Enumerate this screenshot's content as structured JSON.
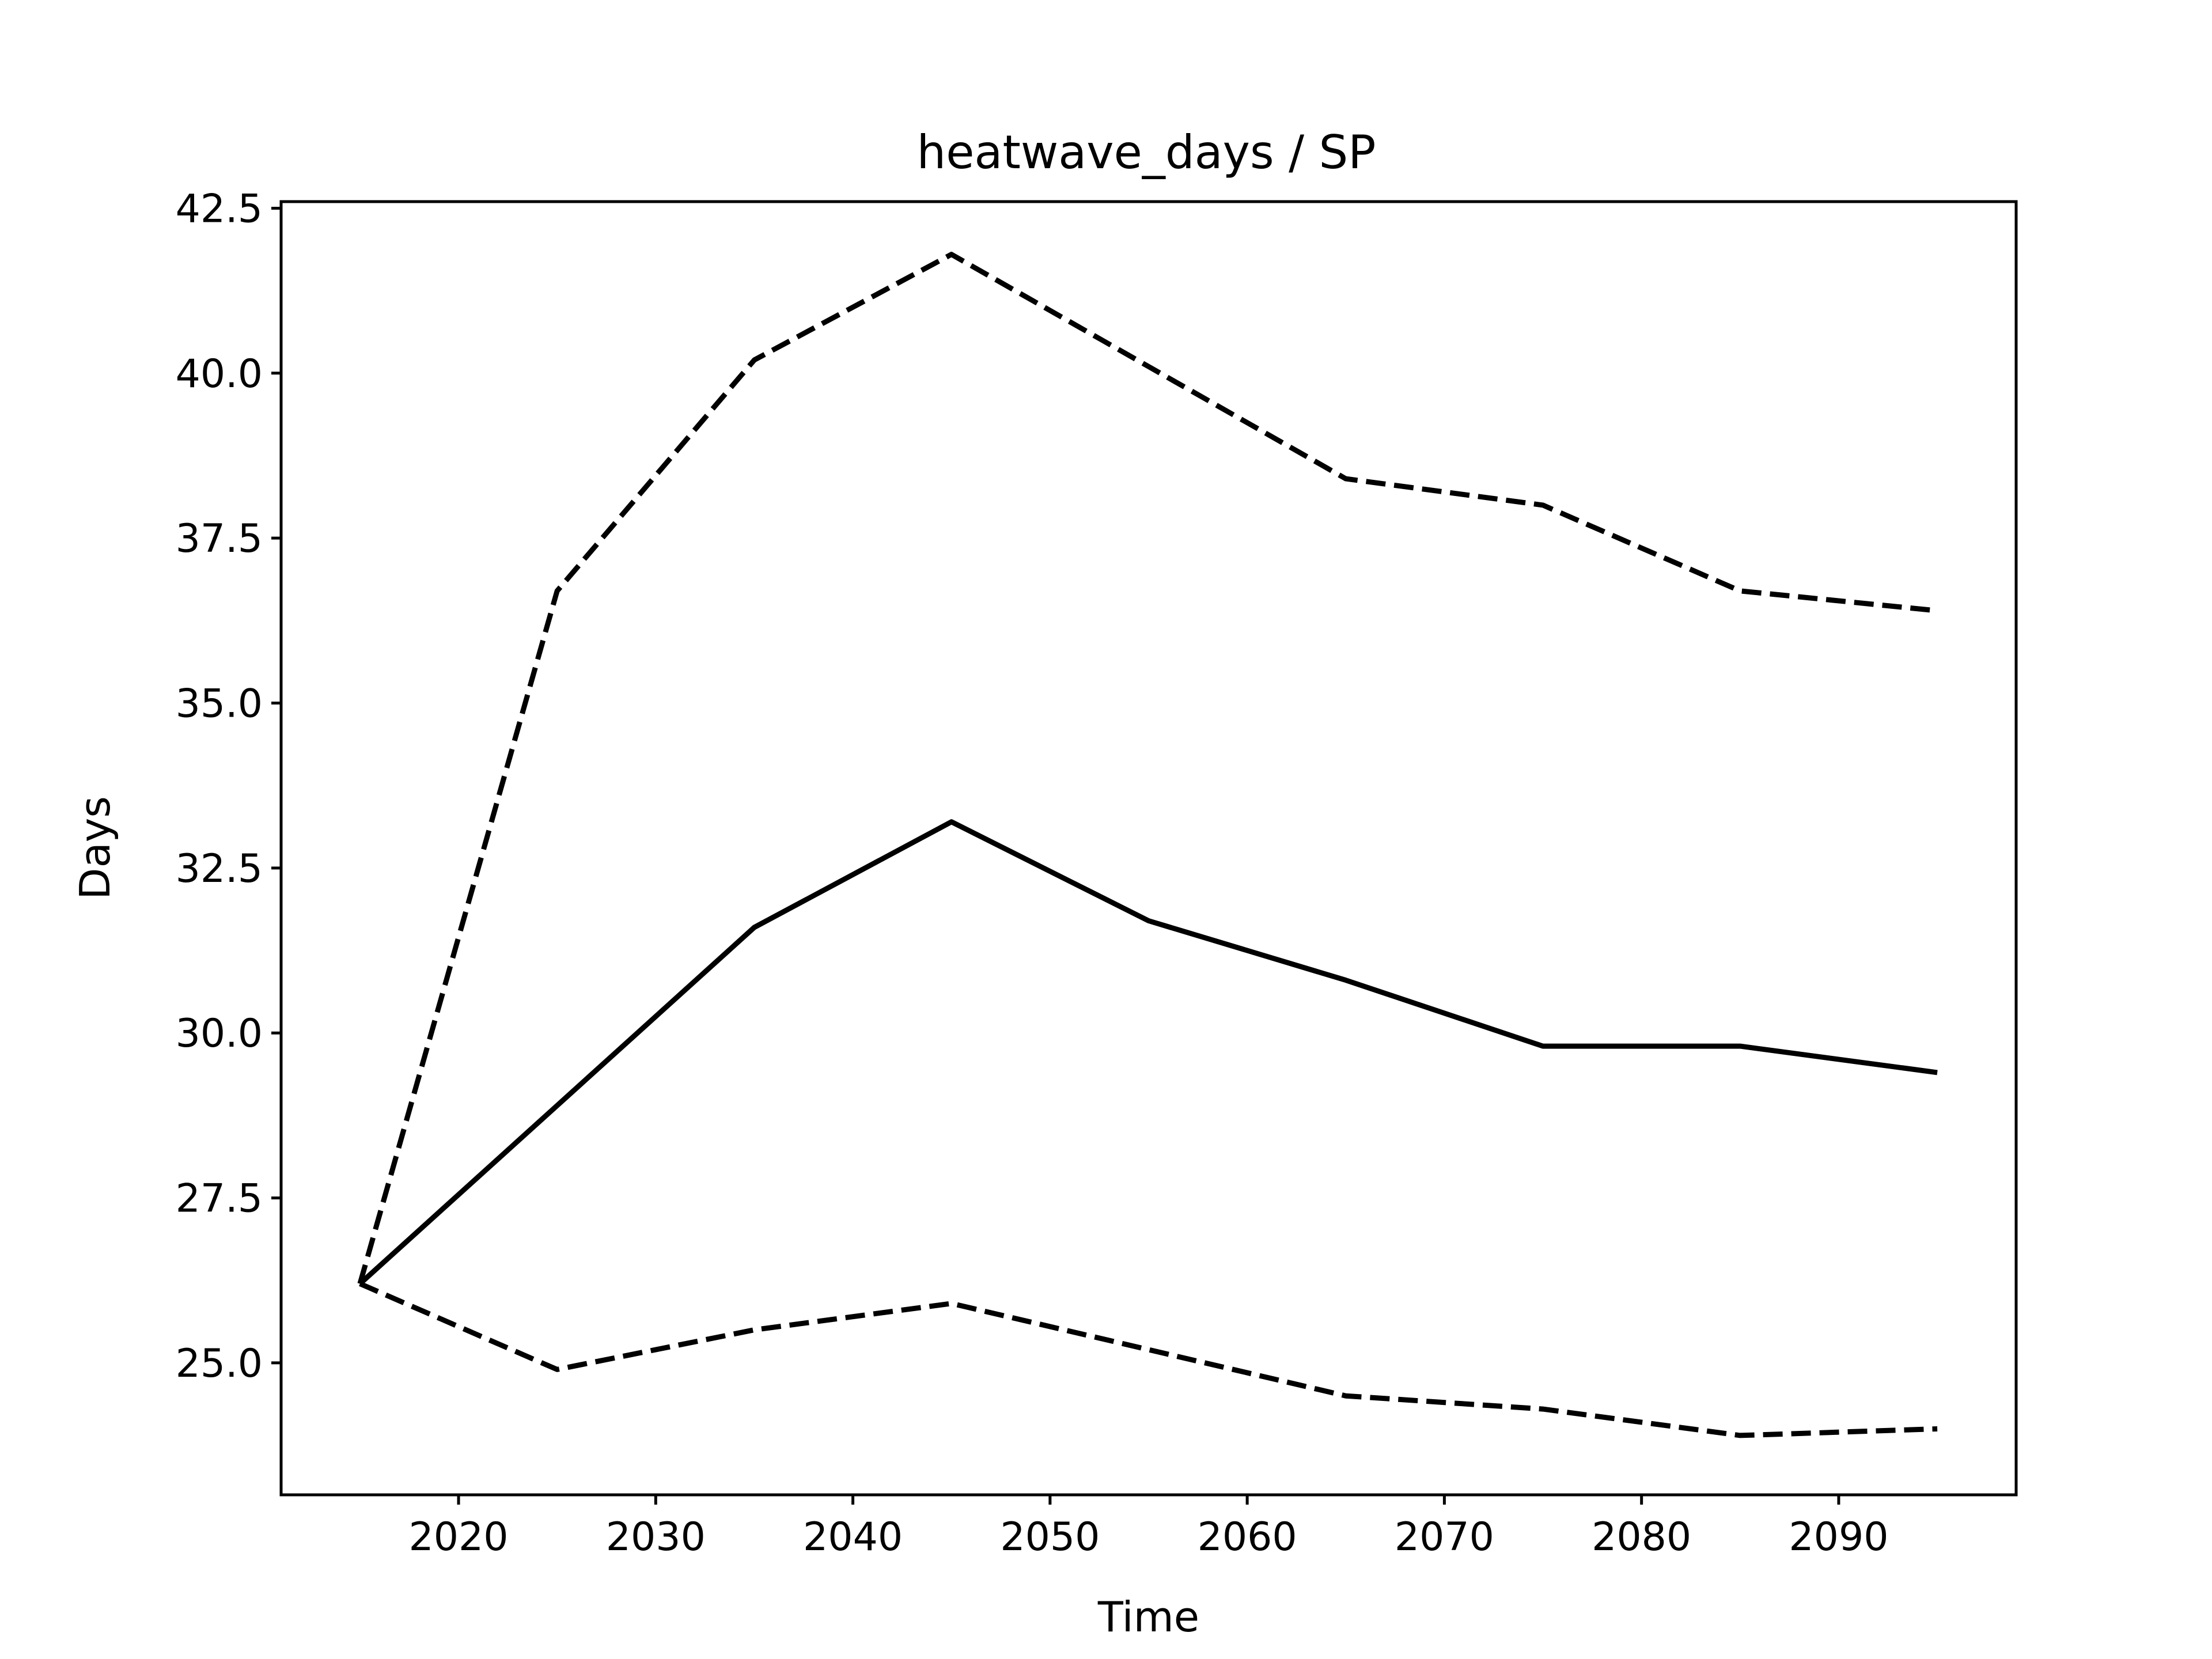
{
  "chart_data": {
    "type": "line",
    "title": "heatwave_days / SP",
    "xlabel": "Time",
    "ylabel": "Days",
    "x": [
      2015,
      2025,
      2035,
      2045,
      2055,
      2065,
      2075,
      2085,
      2095
    ],
    "xlim": [
      2011,
      2099
    ],
    "ylim": [
      23.0,
      42.6
    ],
    "xticks": [
      2020,
      2030,
      2040,
      2050,
      2060,
      2070,
      2080,
      2090
    ],
    "xtick_labels": [
      "2020",
      "2030",
      "2040",
      "2050",
      "2060",
      "2070",
      "2080",
      "2090"
    ],
    "yticks": [
      25.0,
      27.5,
      30.0,
      32.5,
      35.0,
      37.5,
      40.0,
      42.5
    ],
    "ytick_labels": [
      "25.0",
      "27.5",
      "30.0",
      "32.5",
      "35.0",
      "37.5",
      "40.0",
      "42.5"
    ],
    "grid": false,
    "series": [
      {
        "values": [
          26.2,
          36.7,
          40.2,
          41.8,
          40.1,
          38.4,
          38.0,
          36.7,
          36.4
        ],
        "style": "dashed",
        "color": "#000000"
      },
      {
        "values": [
          26.2,
          28.9,
          31.6,
          33.2,
          31.7,
          30.8,
          29.8,
          29.8,
          29.4
        ],
        "style": "solid",
        "color": "#000000"
      },
      {
        "values": [
          26.2,
          24.9,
          25.5,
          25.9,
          25.2,
          24.5,
          24.3,
          23.9,
          24.0
        ],
        "style": "dashed",
        "color": "#000000"
      }
    ]
  }
}
